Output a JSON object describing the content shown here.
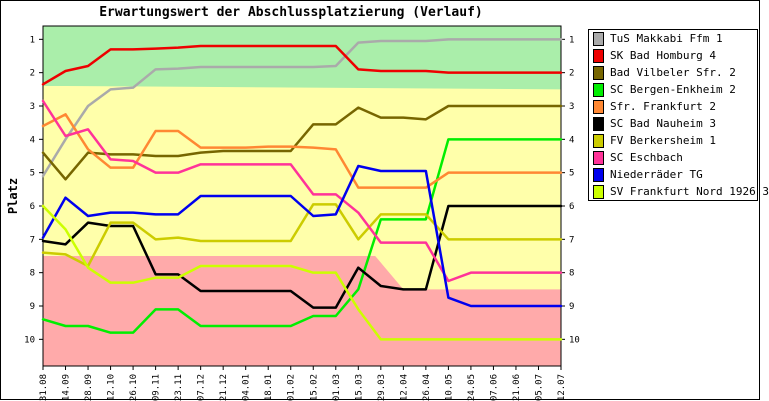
{
  "chart_data": {
    "type": "line",
    "title": "Erwartungswert der Abschlussplatzierung (Verlauf)",
    "ylabel": "Platz",
    "xlabel": "",
    "ylim": [
      0.6,
      10.8
    ],
    "y_inverted": true,
    "yticks": [
      1,
      2,
      3,
      4,
      5,
      6,
      7,
      8,
      9,
      10
    ],
    "x": [
      "31.08",
      "14.09",
      "28.09",
      "12.10",
      "26.10",
      "09.11",
      "23.11",
      "07.12",
      "21.12",
      "04.01",
      "18.01",
      "01.02",
      "15.02",
      "01.03",
      "15.03",
      "29.03",
      "12.04",
      "26.04",
      "10.05",
      "24.05",
      "07.06",
      "21.06",
      "05.07",
      "12.07"
    ],
    "grid": false,
    "legend_position": "right",
    "series": [
      {
        "name": "TuS Makkabi Ffm 1",
        "color": "#aaaaaa",
        "values": [
          5.1,
          4.0,
          3.0,
          2.5,
          2.45,
          1.9,
          1.88,
          1.83,
          1.83,
          1.83,
          1.83,
          1.83,
          1.83,
          1.8,
          1.1,
          1.05,
          1.05,
          1.05,
          1.0,
          1.0,
          1.0,
          1.0,
          1.0,
          1.0
        ]
      },
      {
        "name": "SK Bad Homburg 4",
        "color": "#ee0000",
        "values": [
          2.35,
          1.95,
          1.8,
          1.3,
          1.3,
          1.28,
          1.25,
          1.2,
          1.2,
          1.2,
          1.2,
          1.2,
          1.2,
          1.2,
          1.9,
          1.95,
          1.95,
          1.95,
          2.0,
          2.0,
          2.0,
          2.0,
          2.0,
          2.0
        ]
      },
      {
        "name": "Bad Vilbeler Sfr. 2",
        "color": "#776600",
        "values": [
          4.4,
          5.2,
          4.4,
          4.45,
          4.45,
          4.5,
          4.5,
          4.4,
          4.35,
          4.35,
          4.35,
          4.35,
          3.55,
          3.55,
          3.05,
          3.35,
          3.35,
          3.4,
          3.0,
          3.0,
          3.0,
          3.0,
          3.0,
          3.0
        ]
      },
      {
        "name": "SC Bergen-Enkheim 2",
        "color": "#00ee00",
        "values": [
          9.4,
          9.6,
          9.6,
          9.8,
          9.8,
          9.1,
          9.1,
          9.6,
          9.6,
          9.6,
          9.6,
          9.6,
          9.3,
          9.3,
          8.5,
          6.4,
          6.4,
          6.4,
          4.0,
          4.0,
          4.0,
          4.0,
          4.0,
          4.0
        ]
      },
      {
        "name": "Sfr. Frankfurt 2",
        "color": "#ff8833",
        "values": [
          3.6,
          3.25,
          4.3,
          4.85,
          4.85,
          3.75,
          3.75,
          4.25,
          4.25,
          4.25,
          4.22,
          4.22,
          4.25,
          4.3,
          5.45,
          5.45,
          5.45,
          5.45,
          5.0,
          5.0,
          5.0,
          5.0,
          5.0,
          5.0
        ]
      },
      {
        "name": "SC Bad Nauheim 3",
        "color": "#000000",
        "values": [
          7.05,
          7.15,
          6.5,
          6.6,
          6.6,
          8.05,
          8.05,
          8.55,
          8.55,
          8.55,
          8.55,
          8.55,
          9.05,
          9.05,
          7.85,
          8.4,
          8.5,
          8.5,
          6.0,
          6.0,
          6.0,
          6.0,
          6.0,
          6.0
        ]
      },
      {
        "name": "FV Berkersheim 1",
        "color": "#cccc00",
        "values": [
          7.4,
          7.45,
          7.8,
          6.5,
          6.5,
          7.0,
          6.95,
          7.05,
          7.05,
          7.05,
          7.05,
          7.05,
          5.95,
          5.95,
          7.0,
          6.25,
          6.25,
          6.25,
          7.0,
          7.0,
          7.0,
          7.0,
          7.0,
          7.0
        ]
      },
      {
        "name": "SC Eschbach",
        "color": "#ff3399",
        "values": [
          2.85,
          3.9,
          3.7,
          4.6,
          4.65,
          5.0,
          5.0,
          4.75,
          4.75,
          4.75,
          4.75,
          4.75,
          5.65,
          5.65,
          6.2,
          7.1,
          7.1,
          7.1,
          8.25,
          8.0,
          8.0,
          8.0,
          8.0,
          8.0
        ]
      },
      {
        "name": "Niederräder TG",
        "color": "#0000ee",
        "values": [
          6.95,
          5.75,
          6.3,
          6.2,
          6.2,
          6.25,
          6.25,
          5.7,
          5.7,
          5.7,
          5.7,
          5.7,
          6.3,
          6.25,
          4.8,
          4.95,
          4.95,
          4.95,
          8.75,
          9.0,
          9.0,
          9.0,
          9.0,
          9.0
        ]
      },
      {
        "name": "SV Frankfurt Nord 1926 3",
        "color": "#ccff00",
        "values": [
          6.0,
          6.7,
          7.85,
          8.3,
          8.3,
          8.15,
          8.15,
          7.8,
          7.8,
          7.8,
          7.8,
          7.8,
          8.0,
          8.0,
          9.1,
          10.0,
          10.0,
          10.0,
          10.0,
          10.0,
          10.0,
          10.0,
          10.0,
          10.0
        ]
      }
    ],
    "zones": [
      {
        "name": "promotion",
        "color": "#aaeeaa",
        "y_from": 0.6,
        "y_to": [
          2.4,
          2.4,
          2.5
        ]
      },
      {
        "name": "middle",
        "color": "#ffffaa"
      },
      {
        "name": "relegation",
        "color": "#ffaaaa",
        "y_from_values": [
          7.5,
          7.5,
          7.5,
          7.5,
          7.5,
          7.5,
          7.5,
          7.5,
          7.5,
          7.5,
          7.5,
          7.5,
          7.5,
          7.5,
          7.5,
          7.5,
          8.5,
          8.5,
          8.5,
          8.5,
          8.5,
          8.5,
          8.5,
          8.5
        ],
        "y_to": 10.8
      }
    ]
  }
}
